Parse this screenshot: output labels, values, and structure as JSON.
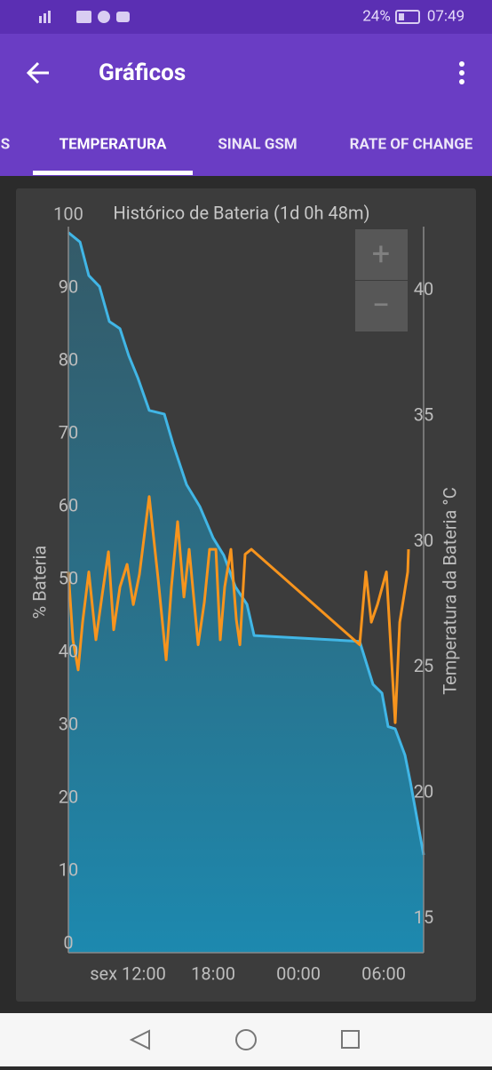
{
  "status_bar": {
    "battery": "24%",
    "time": "07:49"
  },
  "app_bar": {
    "title": "Gráficos"
  },
  "tabs": [
    "S",
    "TEMPERATURA",
    "SINAL GSM",
    "RATE OF CHANGE"
  ],
  "selected_tab": 1,
  "zoom": {
    "in": "+",
    "out": "−"
  },
  "chart_data": {
    "type": "line",
    "title": "Histórico de Bateria (1d 0h 48m)",
    "y_label": "% Bateria",
    "y2_label": "Temperatura da Bateria °C",
    "xlim": [
      7.81,
      32.81
    ],
    "xticks": [
      {
        "value": 12,
        "label": "sex 12:00"
      },
      {
        "value": 18,
        "label": "18:00"
      },
      {
        "value": 24,
        "label": "00:00"
      },
      {
        "value": 30,
        "label": "06:00"
      }
    ],
    "ylim": [
      0,
      100
    ],
    "yticks": [
      0,
      10,
      20,
      30,
      40,
      50,
      60,
      70,
      80,
      90,
      100
    ],
    "y2lim": [
      14,
      43
    ],
    "y2ticks": [
      15,
      20,
      25,
      30,
      35,
      40
    ],
    "series": [
      {
        "color": "#41b6e6",
        "fill": true,
        "x": [
          7.81,
          8.63,
          9.25,
          10,
          10.69,
          11.44,
          12.06,
          12.69,
          13.5,
          14.56,
          15.19,
          16.13,
          17.06,
          18,
          18.75,
          19.56,
          20.38,
          20.88,
          28.31,
          29.25,
          29.88,
          30.31,
          30.81,
          31.5,
          31.88,
          32.81
        ],
        "values": [
          97.6,
          96.3,
          91.7,
          90.2,
          85.4,
          84.4,
          80.7,
          77.7,
          73.2,
          72.7,
          68.5,
          63,
          60,
          55.7,
          53.3,
          49,
          46.6,
          42.3,
          41.5,
          35.6,
          34.4,
          29.8,
          29.5,
          25.9,
          22.2,
          12.2
        ]
      },
      {
        "color": "#f7941d",
        "axis": "y2",
        "x": [
          7.81,
          8.13,
          8.5,
          8.81,
          9.25,
          9.75,
          10.19,
          10.63,
          11,
          11.44,
          11.94,
          12.38,
          12.81,
          13.5,
          14.13,
          14.69,
          15.06,
          15.5,
          15.94,
          16.31,
          16.63,
          16.94,
          17.38,
          17.75,
          18.19,
          18.5,
          18.81,
          19.25,
          19.63,
          19.88,
          20.25,
          20.69,
          28.31,
          28.75,
          29.13,
          29.56,
          30.19,
          30.81,
          31.13,
          31.44,
          31.69,
          31.75
        ],
        "values": [
          28.8,
          26.1,
          24.9,
          26.8,
          28.8,
          26.1,
          27.9,
          29.6,
          26.5,
          28.2,
          29.1,
          27.5,
          28.7,
          31.8,
          28.5,
          25.3,
          28.2,
          30.8,
          27.8,
          29.7,
          27.8,
          25.9,
          27.6,
          29.7,
          29.7,
          26.1,
          28.2,
          29.7,
          26.9,
          25.9,
          29.5,
          29.7,
          25.9,
          28.8,
          26.8,
          27.5,
          28.8,
          22.8,
          26.8,
          27.9,
          28.8,
          29.7
        ]
      }
    ]
  }
}
